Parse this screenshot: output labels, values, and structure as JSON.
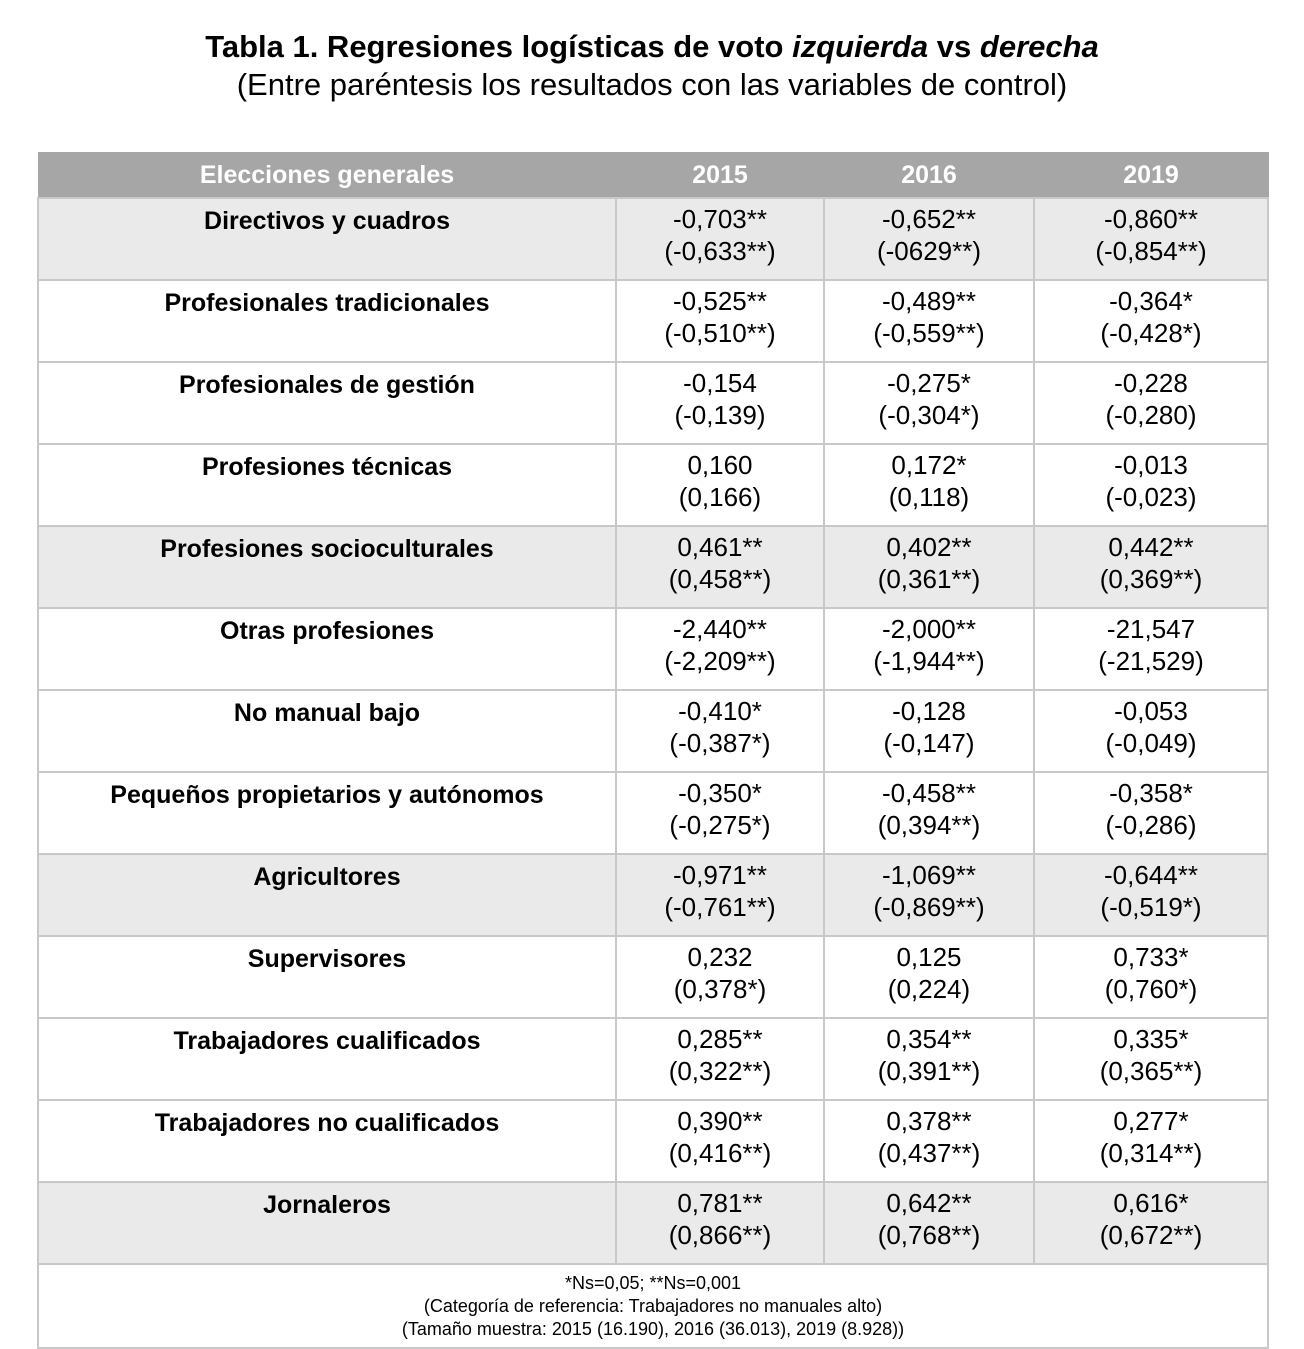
{
  "title": {
    "prefix": "Tabla 1. Regresiones logísticas de voto ",
    "em1": "izquierda",
    "mid": " vs ",
    "em2": "derecha",
    "subtitle": "(Entre paréntesis los resultados con las variables de control)"
  },
  "table": {
    "headers": [
      "Elecciones generales",
      "2015",
      "2016",
      "2019"
    ],
    "rows": [
      {
        "label": "Directivos y cuadros",
        "v2015": "-0,703**",
        "c2015": "(-0,633**)",
        "v2016": "-0,652**",
        "c2016": "(-0629**)",
        "v2019": "-0,860**",
        "c2019": "(-0,854**)"
      },
      {
        "label": "Profesionales tradicionales",
        "v2015": "-0,525**",
        "c2015": "(-0,510**)",
        "v2016": "-0,489**",
        "c2016": "(-0,559**)",
        "v2019": "-0,364*",
        "c2019": "(-0,428*)"
      },
      {
        "label": "Profesionales de gestión",
        "v2015": "-0,154",
        "c2015": "(-0,139)",
        "v2016": "-0,275*",
        "c2016": "(-0,304*)",
        "v2019": "-0,228",
        "c2019": "(-0,280)"
      },
      {
        "label": "Profesiones técnicas",
        "v2015": "0,160",
        "c2015": "(0,166)",
        "v2016": "0,172*",
        "c2016": "(0,118)",
        "v2019": "-0,013",
        "c2019": "(-0,023)"
      },
      {
        "label": "Profesiones socioculturales",
        "v2015": "0,461**",
        "c2015": "(0,458**)",
        "v2016": "0,402**",
        "c2016": "(0,361**)",
        "v2019": "0,442**",
        "c2019": "(0,369**)"
      },
      {
        "label": "Otras profesiones",
        "v2015": "-2,440**",
        "c2015": "(-2,209**)",
        "v2016": "-2,000**",
        "c2016": "(-1,944**)",
        "v2019": "-21,547",
        "c2019": "(-21,529)"
      },
      {
        "label": "No manual bajo",
        "v2015": "-0,410*",
        "c2015": "(-0,387*)",
        "v2016": "-0,128",
        "c2016": "(-0,147)",
        "v2019": "-0,053",
        "c2019": "(-0,049)"
      },
      {
        "label": "Pequeños propietarios y autónomos",
        "v2015": "-0,350*",
        "c2015": "(-0,275*)",
        "v2016": "-0,458**",
        "c2016": "(0,394**)",
        "v2019": "-0,358*",
        "c2019": "(-0,286)"
      },
      {
        "label": "Agricultores",
        "v2015": "-0,971**",
        "c2015": "(-0,761**)",
        "v2016": "-1,069**",
        "c2016": "(-0,869**)",
        "v2019": "-0,644**",
        "c2019": "(-0,519*)"
      },
      {
        "label": "Supervisores",
        "v2015": "0,232",
        "c2015": "(0,378*)",
        "v2016": "0,125",
        "c2016": "(0,224)",
        "v2019": "0,733*",
        "c2019": "(0,760*)"
      },
      {
        "label": "Trabajadores cualificados",
        "v2015": "0,285**",
        "c2015": "(0,322**)",
        "v2016": "0,354**",
        "c2016": "(0,391**)",
        "v2019": "0,335*",
        "c2019": "(0,365**)"
      },
      {
        "label": "Trabajadores no cualificados",
        "v2015": "0,390**",
        "c2015": "(0,416**)",
        "v2016": "0,378**",
        "c2016": "(0,437**)",
        "v2019": "0,277*",
        "c2019": "(0,314**)"
      },
      {
        "label": "Jornaleros",
        "v2015": "0,781**",
        "c2015": "(0,866**)",
        "v2016": "0,642**",
        "c2016": "(0,768**)",
        "v2019": "0,616*",
        "c2019": "(0,672**)"
      }
    ],
    "notes": [
      "*Ns=0,05; **Ns=0,001",
      "(Categoría de referencia: Trabajadores no manuales alto)",
      "(Tamaño muestra: 2015 (16.190), 2016 (36.013), 2019 (8.928))"
    ]
  }
}
